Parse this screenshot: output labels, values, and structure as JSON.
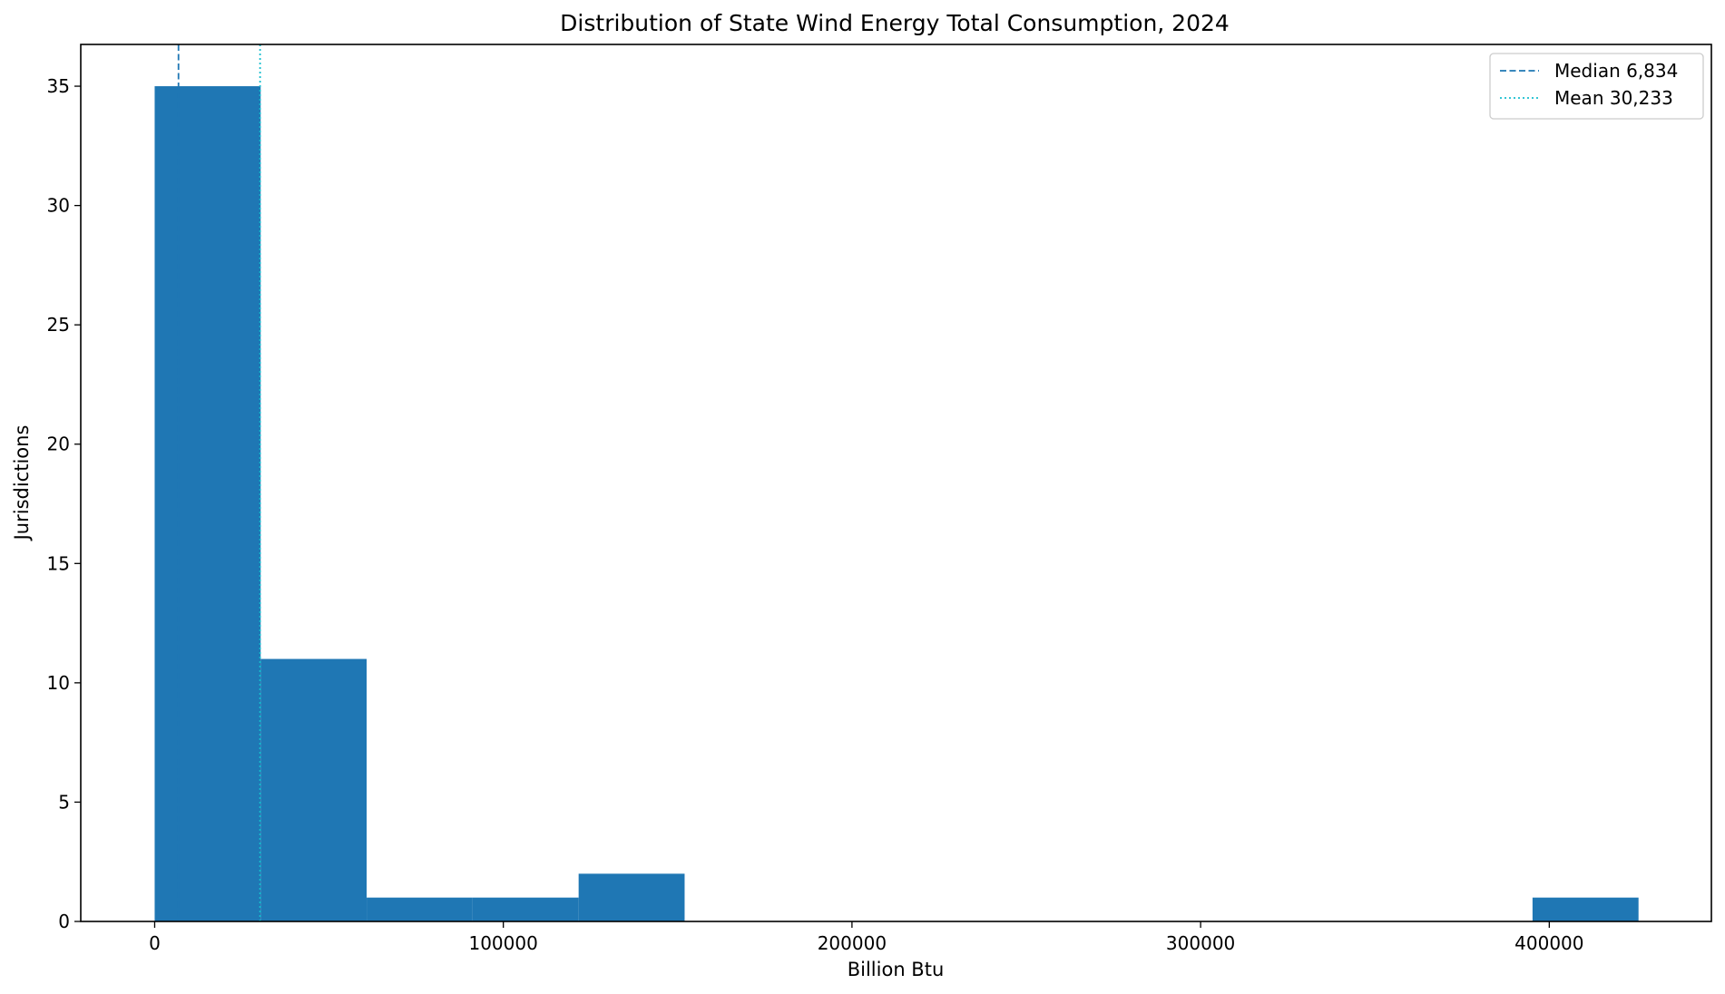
{
  "chart_data": {
    "type": "bar",
    "title": "Distribution of State Wind Energy Total Consumption, 2024",
    "xlabel": "Billion Btu",
    "ylabel": "Jurisdictions",
    "xlim": [
      -21200,
      446500
    ],
    "ylim": [
      0,
      36.75
    ],
    "bins": [
      {
        "start": 0,
        "end": 30400,
        "count": 35
      },
      {
        "start": 30400,
        "end": 60800,
        "count": 11
      },
      {
        "start": 60800,
        "end": 91200,
        "count": 1
      },
      {
        "start": 91200,
        "end": 121600,
        "count": 1
      },
      {
        "start": 121600,
        "end": 152000,
        "count": 2
      },
      {
        "start": 152000,
        "end": 182400,
        "count": 0
      },
      {
        "start": 182400,
        "end": 212800,
        "count": 0
      },
      {
        "start": 212800,
        "end": 243200,
        "count": 0
      },
      {
        "start": 243200,
        "end": 273600,
        "count": 0
      },
      {
        "start": 273600,
        "end": 304000,
        "count": 0
      },
      {
        "start": 304000,
        "end": 334400,
        "count": 0
      },
      {
        "start": 334400,
        "end": 364800,
        "count": 0
      },
      {
        "start": 364800,
        "end": 395200,
        "count": 0
      },
      {
        "start": 395200,
        "end": 425600,
        "count": 1
      }
    ],
    "x_ticks": [
      0,
      100000,
      200000,
      300000,
      400000
    ],
    "x_tick_labels": [
      "0",
      "100000",
      "200000",
      "300000",
      "400000"
    ],
    "y_ticks": [
      0,
      5,
      10,
      15,
      20,
      25,
      30,
      35
    ],
    "y_tick_labels": [
      "0",
      "5",
      "10",
      "15",
      "20",
      "25",
      "30",
      "35"
    ],
    "median": 6834,
    "mean": 30233,
    "legend": [
      {
        "label": "Median 6,834",
        "style": "dashed"
      },
      {
        "label": "Mean 30,233",
        "style": "dotted"
      }
    ],
    "legend_position": "top-right",
    "bar_color": "#1f77b4",
    "median_color": "#1f77b4",
    "mean_color": "#17becf",
    "grid": false
  }
}
